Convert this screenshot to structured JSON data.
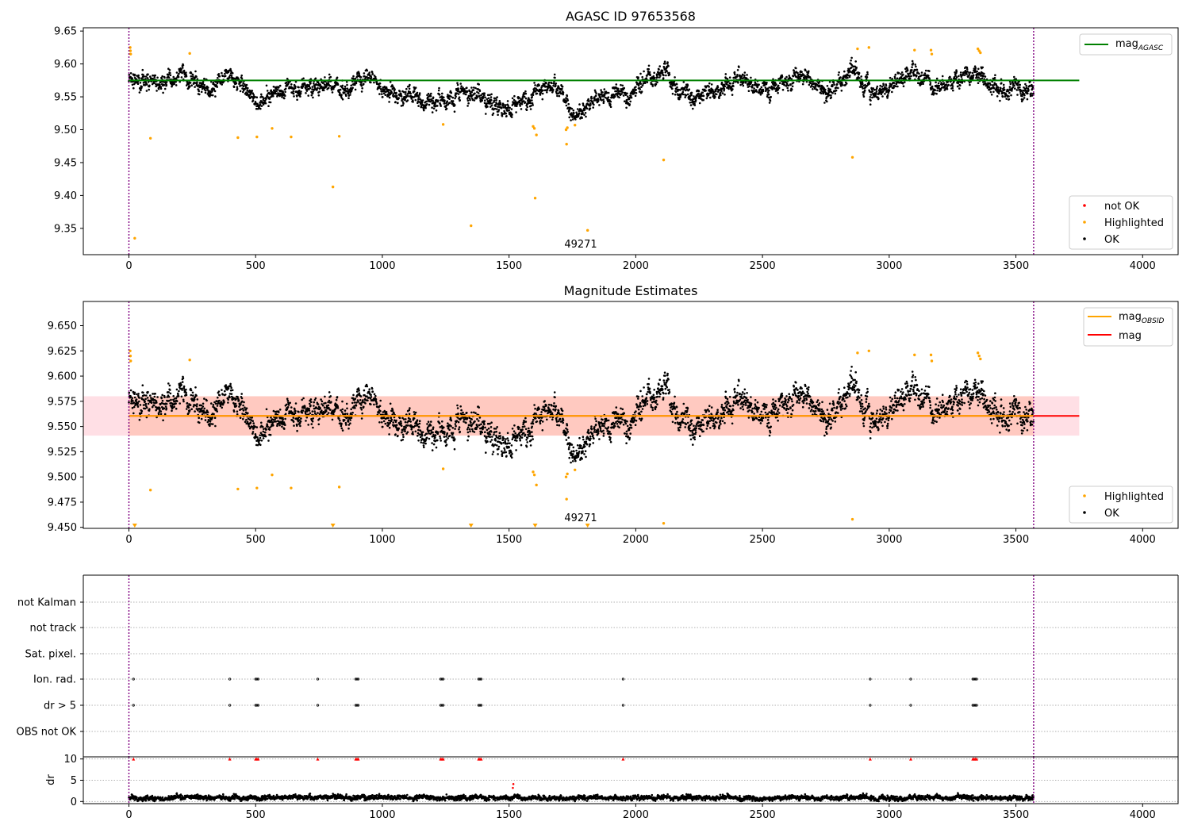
{
  "chart_data": [
    {
      "type": "scatter",
      "title": "AGASC ID 97653568",
      "xlim": [
        -180,
        4140
      ],
      "ylim": [
        9.31,
        9.655
      ],
      "xticks": [
        0,
        500,
        1000,
        1500,
        2000,
        2500,
        3000,
        3500,
        4000
      ],
      "xtick_labels": [
        "0",
        "500",
        "1000",
        "1500",
        "2000",
        "2500",
        "3000",
        "3500",
        "4000"
      ],
      "yticks": [
        9.35,
        9.4,
        9.45,
        9.5,
        9.55,
        9.6,
        9.65
      ],
      "ytick_labels": [
        "9.35",
        "9.40",
        "9.45",
        "9.50",
        "9.55",
        "9.60",
        "9.65"
      ],
      "reference_lines": [
        {
          "label": "mag_AGASC",
          "y": 9.575,
          "x_range": [
            0,
            3750
          ],
          "color": "#008000"
        }
      ],
      "obsid_boundaries": [
        0,
        3570
      ],
      "obsid_label": {
        "text": "49271",
        "x": 1785
      },
      "legend_top": {
        "position": "top-right",
        "entries": [
          {
            "label": "mag",
            "subscript": "AGASC",
            "color": "#008000",
            "kind": "line"
          }
        ]
      },
      "legend_bottom": {
        "position": "bottom-right",
        "entries": [
          {
            "label": "not OK",
            "color": "#ff0000"
          },
          {
            "label": "Highlighted",
            "color": "#ffa500"
          },
          {
            "label": "OK",
            "color": "#000000"
          }
        ]
      },
      "ok_series": {
        "name": "OK",
        "color": "#000000",
        "n_points": 3570,
        "base": 9.563,
        "segments": [
          [
            0,
            9.575
          ],
          [
            210,
            9.58
          ],
          [
            330,
            9.56
          ],
          [
            410,
            9.585
          ],
          [
            500,
            9.54
          ],
          [
            620,
            9.56
          ],
          [
            740,
            9.565
          ],
          [
            870,
            9.57
          ],
          [
            960,
            9.58
          ],
          [
            1020,
            9.55
          ],
          [
            1240,
            9.54
          ],
          [
            1310,
            9.555
          ],
          [
            1480,
            9.535
          ],
          [
            1560,
            9.54
          ],
          [
            1640,
            9.565
          ],
          [
            1700,
            9.57
          ],
          [
            1750,
            9.52
          ],
          [
            1860,
            9.55
          ],
          [
            1980,
            9.555
          ],
          [
            2120,
            9.59
          ],
          [
            2180,
            9.56
          ],
          [
            2330,
            9.555
          ],
          [
            2410,
            9.58
          ],
          [
            2490,
            9.555
          ],
          [
            2600,
            9.57
          ],
          [
            2670,
            9.585
          ],
          [
            2750,
            9.555
          ],
          [
            2860,
            9.59
          ],
          [
            2940,
            9.555
          ],
          [
            3090,
            9.585
          ],
          [
            3190,
            9.565
          ],
          [
            3340,
            9.585
          ],
          [
            3410,
            9.56
          ],
          [
            3570,
            9.56
          ]
        ]
      },
      "highlighted_points": [
        [
          5,
          9.625
        ],
        [
          6,
          9.62
        ],
        [
          7,
          9.615
        ],
        [
          23,
          9.335
        ],
        [
          85,
          9.487
        ],
        [
          240,
          9.616
        ],
        [
          430,
          9.488
        ],
        [
          505,
          9.489
        ],
        [
          565,
          9.502
        ],
        [
          640,
          9.489
        ],
        [
          805,
          9.413
        ],
        [
          830,
          9.49
        ],
        [
          1240,
          9.508
        ],
        [
          1350,
          9.354
        ],
        [
          1595,
          9.505
        ],
        [
          1600,
          9.502
        ],
        [
          1603,
          9.396
        ],
        [
          1608,
          9.492
        ],
        [
          1725,
          9.5
        ],
        [
          1727,
          9.478
        ],
        [
          1730,
          9.503
        ],
        [
          1760,
          9.507
        ],
        [
          1810,
          9.347
        ],
        [
          2110,
          9.454
        ],
        [
          2855,
          9.458
        ],
        [
          2875,
          9.623
        ],
        [
          2920,
          9.625
        ],
        [
          3100,
          9.621
        ],
        [
          3165,
          9.621
        ],
        [
          3168,
          9.615
        ],
        [
          3350,
          9.623
        ],
        [
          3355,
          9.62
        ],
        [
          3360,
          9.617
        ]
      ],
      "not_ok_points": []
    },
    {
      "type": "scatter",
      "title": "Magnitude Estimates",
      "xlim": [
        -180,
        4140
      ],
      "ylim": [
        9.449,
        9.674
      ],
      "xticks": [
        0,
        500,
        1000,
        1500,
        2000,
        2500,
        3000,
        3500,
        4000
      ],
      "xtick_labels": [
        "0",
        "500",
        "1000",
        "1500",
        "2000",
        "2500",
        "3000",
        "3500",
        "4000"
      ],
      "yticks": [
        9.45,
        9.475,
        9.5,
        9.525,
        9.55,
        9.575,
        9.6,
        9.625,
        9.65
      ],
      "ytick_labels": [
        "9.450",
        "9.475",
        "9.500",
        "9.525",
        "9.550",
        "9.575",
        "9.600",
        "9.625",
        "9.650"
      ],
      "reference_lines": [
        {
          "label": "mag",
          "y": 9.5605,
          "x_range": [
            0,
            3750
          ],
          "color": "#ff0000"
        },
        {
          "label": "mag_OBSID",
          "y": 9.5605,
          "x_range": [
            0,
            3570
          ],
          "color": "#ffa500"
        }
      ],
      "bands": [
        {
          "label": "mag",
          "y": [
            9.541,
            9.58
          ],
          "x_range": [
            -180,
            3750
          ],
          "color": "#ffc0cb"
        },
        {
          "label": "mag_OBSID",
          "y": [
            9.541,
            9.58
          ],
          "x_range": [
            0,
            3570
          ],
          "color": "#ffa07a"
        }
      ],
      "obsid_boundaries": [
        0,
        3570
      ],
      "obsid_label": {
        "text": "49271",
        "x": 1785
      },
      "legend_top": {
        "position": "top-right",
        "entries": [
          {
            "label": "mag",
            "subscript": "OBSID",
            "color": "#ffa500",
            "kind": "line"
          },
          {
            "label": "mag",
            "subscript": "",
            "color": "#ff0000",
            "kind": "line"
          }
        ]
      },
      "legend_bottom": {
        "position": "bottom-right",
        "entries": [
          {
            "label": "Highlighted",
            "color": "#ffa500"
          },
          {
            "label": "OK",
            "color": "#000000"
          }
        ]
      },
      "clipped_markers": {
        "shape": "down-triangle",
        "color": "#ffa500",
        "x": [
          23,
          805,
          1350,
          1603,
          1810
        ]
      }
    },
    {
      "type": "scatter",
      "title": "",
      "xlim": [
        -180,
        4140
      ],
      "categories": [
        "not Kalman",
        "not track",
        "Sat. pixel.",
        "Ion. rad.",
        "dr > 5",
        "OBS not OK"
      ],
      "flag_rows": [
        {
          "label": "not Kalman",
          "x": []
        },
        {
          "label": "not track",
          "x": []
        },
        {
          "label": "Sat. pixel.",
          "x": []
        },
        {
          "label": "Ion. rad.",
          "x": [
            18,
            398,
            500,
            505,
            510,
            745,
            895,
            900,
            905,
            1230,
            1235,
            1240,
            1380,
            1385,
            1390,
            1950,
            2925,
            3085,
            3330,
            3335,
            3340,
            3345
          ]
        },
        {
          "label": "dr > 5",
          "x": [
            18,
            398,
            500,
            505,
            510,
            745,
            895,
            900,
            905,
            1230,
            1235,
            1240,
            1380,
            1385,
            1390,
            1950,
            2925,
            3085,
            3330,
            3335,
            3340,
            3345
          ]
        },
        {
          "label": "OBS not OK",
          "x": []
        }
      ],
      "obsid_boundaries": [
        0,
        3570
      ]
    },
    {
      "type": "scatter",
      "title": "",
      "ylabel": "dr",
      "xlim": [
        -180,
        4140
      ],
      "ylim": [
        -0.5,
        10.5
      ],
      "xticks": [
        0,
        500,
        1000,
        1500,
        2000,
        2500,
        3000,
        3500,
        4000
      ],
      "xtick_labels": [
        "0",
        "500",
        "1000",
        "1500",
        "2000",
        "2500",
        "3000",
        "3500",
        "4000"
      ],
      "yticks": [
        0,
        5,
        10
      ],
      "ytick_labels": [
        "0",
        "5",
        "10"
      ],
      "clip_value": 10,
      "clipped_x": [
        18,
        398,
        500,
        505,
        510,
        745,
        895,
        900,
        905,
        1230,
        1235,
        1240,
        1380,
        1385,
        1390,
        1950,
        2925,
        3085,
        3330,
        3335,
        3340,
        3345
      ],
      "red_points": [
        [
          1515,
          3.2
        ],
        [
          1517,
          4.1
        ]
      ],
      "ok_series": {
        "name": "OK",
        "color": "#000000",
        "n_points": 3570,
        "typical_range": [
          0,
          2.8
        ]
      },
      "obsid_boundaries": [
        0,
        3570
      ]
    }
  ]
}
